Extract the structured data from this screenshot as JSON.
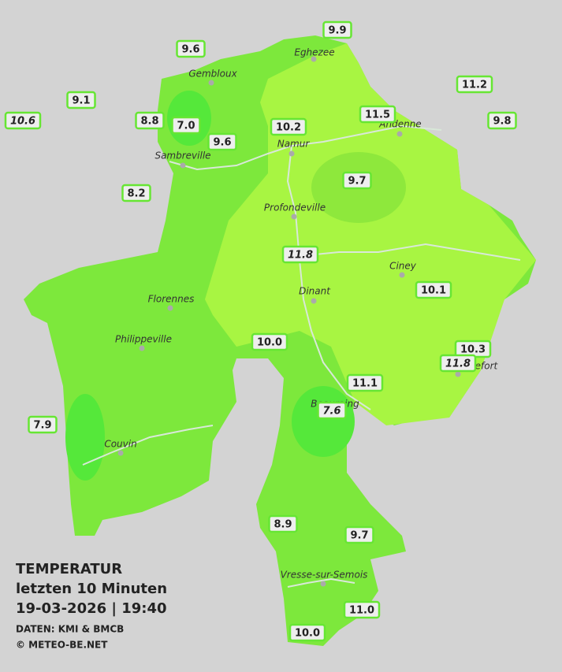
{
  "title": {
    "lines": [
      "TEMPERATUR",
      "letzten 10 Minuten",
      "19-03-2026  |  19:40"
    ],
    "credits": [
      "DATEN: KMI & BMCB",
      "© METEO-BE.NET"
    ]
  },
  "cities": [
    "Eghezee",
    "Gembloux",
    "Andenne",
    "Namur",
    "Sambreville",
    "Profondeville",
    "Ciney",
    "Dinant",
    "Florennes",
    "Philippeville",
    "Rochefort",
    "Beauraing",
    "Couvin",
    "Vresse-sur-Semois"
  ],
  "stations": [
    "9.9",
    "9.6",
    "9.1",
    "10.6",
    "8.8",
    "7.0",
    "9.6",
    "10.2",
    "11.5",
    "11.2",
    "9.8",
    "9.7",
    "8.2",
    "11.8",
    "10.1",
    "10.0",
    "10.3",
    "11.8",
    "11.1",
    "7.6",
    "7.9",
    "8.9",
    "9.7",
    "11.0",
    "10.0"
  ]
}
